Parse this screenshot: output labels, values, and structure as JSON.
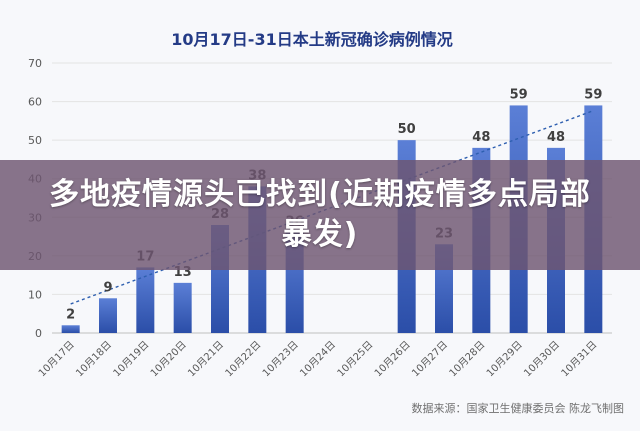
{
  "chart_data": {
    "type": "bar",
    "title": "10月17日-31日本土新冠确诊病例情况",
    "categories": [
      "10月17日",
      "10月18日",
      "10月19日",
      "10月20日",
      "10月21日",
      "10月22日",
      "10月23日",
      "10月24日",
      "10月25日",
      "10月26日",
      "10月27日",
      "10月28日",
      "10月29日",
      "10月30日",
      "10月31日"
    ],
    "values": [
      2,
      9,
      17,
      13,
      28,
      38,
      26,
      null,
      null,
      50,
      23,
      48,
      59,
      48,
      59
    ],
    "data_labels": [
      "2",
      "9",
      "17",
      "13",
      "28",
      "38",
      "26",
      "",
      "",
      "50",
      "23",
      "48",
      "59",
      "48",
      "59"
    ],
    "ylim": [
      0,
      70
    ],
    "yticks": [
      0,
      10,
      20,
      30,
      40,
      50,
      60,
      70
    ],
    "trendline": {
      "style": "dashed",
      "type": "linear"
    },
    "grid": true,
    "colors": {
      "bar_top": "#4f6fc8",
      "bar_bottom": "#2d4fa6",
      "trend": "#2e5fb0",
      "title": "#243b86"
    }
  },
  "banner": {
    "text": "多地疫情源头已找到(近期疫情多点局部暴发)"
  },
  "source": "数据来源：国家卫生健康委员会    陈龙飞制图"
}
